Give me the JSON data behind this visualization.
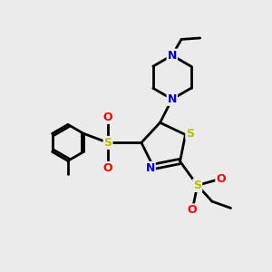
{
  "bg_color": "#ebebeb",
  "atom_colors": {
    "C": "#000000",
    "N": "#0000cc",
    "S": "#bbbb00",
    "O": "#ff0000"
  },
  "bond_color": "#000000",
  "bond_width": 2.0
}
